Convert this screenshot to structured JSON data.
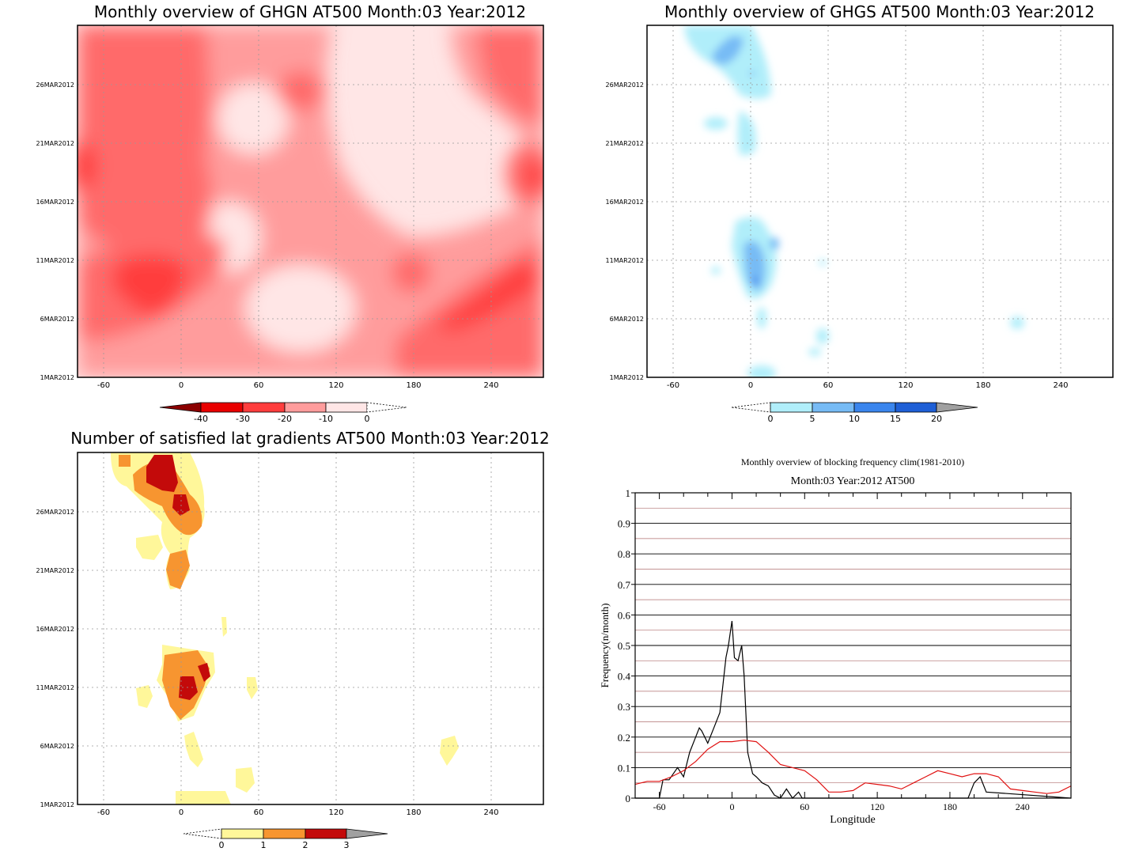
{
  "panels": {
    "ghgn": {
      "title": "Monthly overview of GHGN AT500 Month:03 Year:2012",
      "x_ticks": [
        "-60",
        "0",
        "60",
        "120",
        "180",
        "240"
      ],
      "y_ticks": [
        "1MAR2012",
        "6MAR2012",
        "11MAR2012",
        "16MAR2012",
        "21MAR2012",
        "26MAR2012"
      ],
      "colorbar": {
        "labels": [
          "-40",
          "-30",
          "-20",
          "-10",
          "0"
        ],
        "colors": [
          "#8b0000",
          "#e80000",
          "#ff3d3d",
          "#ff6b6b",
          "#ff9c9c",
          "#ffe6e6"
        ]
      }
    },
    "ghgs": {
      "title": "Monthly overview of GHGS AT500 Month:03 Year:2012",
      "x_ticks": [
        "-60",
        "0",
        "60",
        "120",
        "180",
        "240"
      ],
      "y_ticks": [
        "1MAR2012",
        "6MAR2012",
        "11MAR2012",
        "16MAR2012",
        "21MAR2012",
        "26MAR2012"
      ],
      "colorbar": {
        "labels": [
          "0",
          "5",
          "10",
          "15",
          "20"
        ],
        "colors": [
          "#b0eefa",
          "#77bbf5",
          "#3a85ed",
          "#1e5fd6",
          "#a0a0a0"
        ]
      }
    },
    "lat": {
      "title": "Number of satisfied lat gradients AT500 Month:03 Year:2012",
      "x_ticks": [
        "-60",
        "0",
        "60",
        "120",
        "180",
        "240"
      ],
      "y_ticks": [
        "1MAR2012",
        "6MAR2012",
        "11MAR2012",
        "16MAR2012",
        "21MAR2012",
        "26MAR2012"
      ],
      "colorbar": {
        "labels": [
          "0",
          "1",
          "2",
          "3"
        ],
        "colors": [
          "#fff79a",
          "#f79530",
          "#c30a0a",
          "#a0a0a0"
        ]
      }
    }
  },
  "chart_data": [
    {
      "type": "heatmap",
      "title": "Monthly overview of GHGN AT500 Month:03 Year:2012",
      "x_ticks": [
        -60,
        0,
        60,
        120,
        180,
        240
      ],
      "xlim": [
        -80,
        280
      ],
      "y_ticks": [
        "1MAR2012",
        "6MAR2012",
        "11MAR2012",
        "16MAR2012",
        "21MAR2012",
        "26MAR2012"
      ],
      "levels": [
        -40,
        -30,
        -20,
        -10,
        0
      ]
    },
    {
      "type": "heatmap",
      "title": "Monthly overview of GHGS AT500 Month:03 Year:2012",
      "x_ticks": [
        -60,
        0,
        60,
        120,
        180,
        240
      ],
      "xlim": [
        -80,
        280
      ],
      "y_ticks": [
        "1MAR2012",
        "6MAR2012",
        "11MAR2012",
        "16MAR2012",
        "21MAR2012",
        "26MAR2012"
      ],
      "levels": [
        0,
        5,
        10,
        15,
        20
      ],
      "blobs": [
        {
          "lon": -30,
          "day": 27.5,
          "level": 2
        },
        {
          "lon": 0,
          "day": 11.5,
          "level": 3
        },
        {
          "lon": 0,
          "day": 2,
          "level": 1
        },
        {
          "lon": 55,
          "day": 4,
          "level": 1
        },
        {
          "lon": 210,
          "day": 6,
          "level": 1
        }
      ]
    },
    {
      "type": "heatmap",
      "title": "Number of satisfied lat gradients AT500 Month:03 Year:2012",
      "x_ticks": [
        -60,
        0,
        60,
        120,
        180,
        240
      ],
      "xlim": [
        -80,
        280
      ],
      "y_ticks": [
        "1MAR2012",
        "6MAR2012",
        "11MAR2012",
        "16MAR2012",
        "21MAR2012",
        "26MAR2012"
      ],
      "levels": [
        0,
        1,
        2,
        3
      ],
      "blobs": [
        {
          "lon": -10,
          "day": 29,
          "level": 3
        },
        {
          "lon": 5,
          "day": 26.5,
          "level": 3
        },
        {
          "lon": 5,
          "day": 11,
          "level": 3
        },
        {
          "lon": -25,
          "day": 22.5,
          "level": 1
        },
        {
          "lon": -30,
          "day": 9.5,
          "level": 1
        },
        {
          "lon": 55,
          "day": 11,
          "level": 1
        },
        {
          "lon": 205,
          "day": 6,
          "level": 1
        },
        {
          "lon": 50,
          "day": 3,
          "level": 1
        },
        {
          "lon": 15,
          "day": 1.5,
          "level": 1
        }
      ]
    },
    {
      "type": "line",
      "title": "Monthly overview of blocking frequency clim(1981-2010)",
      "subtitle": "Month:03 Year:2012  AT500",
      "xlabel": "Longitude",
      "ylabel": "Frequency(n/month)",
      "xlim": [
        -80,
        280
      ],
      "ylim": [
        0,
        1
      ],
      "x_ticks": [
        -60,
        0,
        60,
        120,
        180,
        240
      ],
      "y_ticks": [
        0,
        0.1,
        0.2,
        0.3,
        0.4,
        0.5,
        0.6,
        0.7,
        0.8,
        0.9,
        1
      ],
      "series": [
        {
          "color": "#000000",
          "x": [
            -80,
            -60,
            -57,
            -52,
            -45,
            -40,
            -35,
            -30,
            -27,
            -25,
            -20,
            -15,
            -10,
            -5,
            -3,
            0,
            2,
            5,
            8,
            10,
            13,
            17,
            20,
            25,
            30,
            35,
            40,
            45,
            50,
            55,
            58,
            60,
            65,
            195,
            200,
            205,
            210,
            280
          ],
          "values": [
            0,
            0,
            0.06,
            0.06,
            0.1,
            0.07,
            0.15,
            0.2,
            0.23,
            0.22,
            0.18,
            0.23,
            0.28,
            0.46,
            0.5,
            0.58,
            0.46,
            0.45,
            0.5,
            0.4,
            0.15,
            0.08,
            0.07,
            0.05,
            0.04,
            0.01,
            0,
            0.03,
            0,
            0.02,
            0,
            0,
            0,
            0,
            0.05,
            0.07,
            0.02,
            0
          ]
        },
        {
          "color": "#e01010",
          "x": [
            -80,
            -70,
            -60,
            -50,
            -40,
            -30,
            -20,
            -10,
            0,
            10,
            20,
            30,
            40,
            50,
            60,
            70,
            80,
            90,
            100,
            110,
            120,
            130,
            140,
            150,
            160,
            170,
            180,
            190,
            200,
            210,
            220,
            230,
            240,
            250,
            260,
            270,
            280
          ],
          "values": [
            0.045,
            0.055,
            0.055,
            0.07,
            0.09,
            0.12,
            0.16,
            0.185,
            0.185,
            0.19,
            0.185,
            0.15,
            0.11,
            0.1,
            0.09,
            0.06,
            0.02,
            0.02,
            0.025,
            0.05,
            0.045,
            0.04,
            0.03,
            0.05,
            0.07,
            0.09,
            0.08,
            0.07,
            0.08,
            0.08,
            0.07,
            0.03,
            0.025,
            0.02,
            0.015,
            0.02,
            0.04
          ]
        }
      ]
    }
  ]
}
